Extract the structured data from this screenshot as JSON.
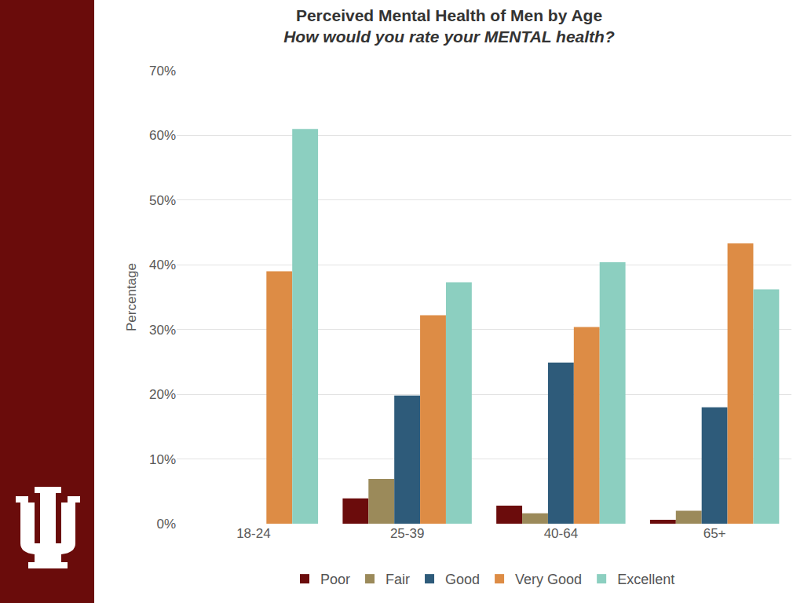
{
  "chart_data": {
    "type": "bar",
    "title": "Perceived Mental Health of Men by Age",
    "subtitle": "How would you rate your MENTAL health?",
    "y_label": "Percentage",
    "categories": [
      "18-24",
      "25-39",
      "40-64",
      "65+"
    ],
    "series": [
      {
        "name": "Poor",
        "color": "#6b0c0c",
        "values": [
          0,
          3.9,
          2.8,
          0.6
        ]
      },
      {
        "name": "Fair",
        "color": "#9b8a5a",
        "values": [
          0,
          6.9,
          1.6,
          2.0
        ]
      },
      {
        "name": "Good",
        "color": "#2e5b7a",
        "values": [
          0,
          19.8,
          24.9,
          18.0
        ]
      },
      {
        "name": "Very Good",
        "color": "#dd8c45",
        "values": [
          39.0,
          32.2,
          30.4,
          43.3
        ]
      },
      {
        "name": "Excellent",
        "color": "#8ccfc0",
        "values": [
          61.0,
          37.3,
          40.4,
          36.2
        ]
      }
    ],
    "ylim": [
      0,
      70
    ],
    "yticks": [
      {
        "value": 0,
        "label": "0%"
      },
      {
        "value": 10,
        "label": "10%"
      },
      {
        "value": 20,
        "label": "20%"
      },
      {
        "value": 30,
        "label": "30%"
      },
      {
        "value": 40,
        "label": "40%"
      },
      {
        "value": 50,
        "label": "50%"
      },
      {
        "value": 60,
        "label": "60%"
      },
      {
        "value": 70,
        "label": "70%"
      }
    ],
    "grid": true,
    "legend": "bottom"
  }
}
